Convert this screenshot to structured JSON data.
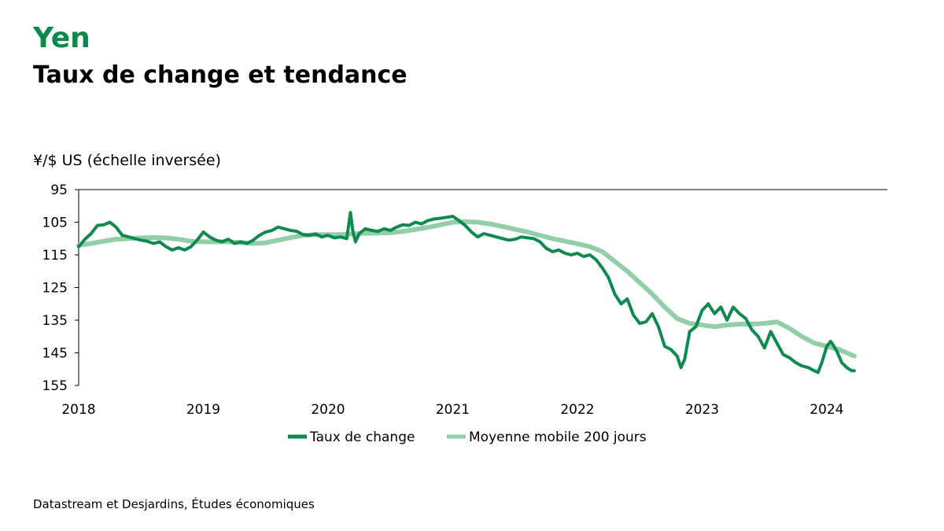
{
  "header": {
    "title": "Yen",
    "subtitle": "Taux de change et tendance"
  },
  "footer": {
    "source": "Datastream et Desjardins, Études économiques"
  },
  "colors": {
    "title": "#0a8a4a",
    "rate": "#0f8a4f",
    "trend": "#92cfa8",
    "axis": "#000000",
    "text": "#000000"
  },
  "chart_data": {
    "type": "line",
    "ylabel": "¥/$ US (échelle inversée)",
    "y_inverted": true,
    "ylim": [
      95,
      155
    ],
    "yticks": [
      "95",
      "105",
      "115",
      "125",
      "135",
      "145",
      "155"
    ],
    "xlim": [
      2018.0,
      2024.5
    ],
    "xticks": [
      "2018",
      "2019",
      "2020",
      "2021",
      "2022",
      "2023",
      "2024"
    ],
    "grid": false,
    "legend_position": "bottom",
    "series": [
      {
        "name": "Taux de change",
        "points": [
          [
            2018.0,
            112.5
          ],
          [
            2018.05,
            110.2
          ],
          [
            2018.1,
            108.5
          ],
          [
            2018.15,
            106.0
          ],
          [
            2018.2,
            105.8
          ],
          [
            2018.25,
            105.0
          ],
          [
            2018.3,
            106.5
          ],
          [
            2018.35,
            109.0
          ],
          [
            2018.4,
            109.5
          ],
          [
            2018.45,
            110.0
          ],
          [
            2018.5,
            110.5
          ],
          [
            2018.55,
            110.8
          ],
          [
            2018.6,
            111.5
          ],
          [
            2018.65,
            111.0
          ],
          [
            2018.7,
            112.5
          ],
          [
            2018.75,
            113.5
          ],
          [
            2018.8,
            112.8
          ],
          [
            2018.85,
            113.5
          ],
          [
            2018.9,
            112.5
          ],
          [
            2018.95,
            110.5
          ],
          [
            2019.0,
            108.0
          ],
          [
            2019.05,
            109.5
          ],
          [
            2019.1,
            110.5
          ],
          [
            2019.15,
            111.0
          ],
          [
            2019.2,
            110.2
          ],
          [
            2019.25,
            111.5
          ],
          [
            2019.3,
            111.0
          ],
          [
            2019.35,
            111.5
          ],
          [
            2019.4,
            110.5
          ],
          [
            2019.45,
            109.0
          ],
          [
            2019.5,
            108.0
          ],
          [
            2019.55,
            107.5
          ],
          [
            2019.6,
            106.5
          ],
          [
            2019.65,
            107.0
          ],
          [
            2019.7,
            107.5
          ],
          [
            2019.75,
            107.8
          ],
          [
            2019.8,
            108.8
          ],
          [
            2019.85,
            109.0
          ],
          [
            2019.9,
            108.6
          ],
          [
            2019.95,
            109.5
          ],
          [
            2020.0,
            109.0
          ],
          [
            2020.05,
            109.8
          ],
          [
            2020.1,
            109.5
          ],
          [
            2020.15,
            110.0
          ],
          [
            2020.18,
            102.0
          ],
          [
            2020.2,
            108.0
          ],
          [
            2020.22,
            111.0
          ],
          [
            2020.25,
            108.5
          ],
          [
            2020.3,
            107.0
          ],
          [
            2020.35,
            107.5
          ],
          [
            2020.4,
            107.8
          ],
          [
            2020.45,
            107.0
          ],
          [
            2020.5,
            107.5
          ],
          [
            2020.55,
            106.5
          ],
          [
            2020.6,
            105.8
          ],
          [
            2020.65,
            106.0
          ],
          [
            2020.7,
            105.0
          ],
          [
            2020.75,
            105.5
          ],
          [
            2020.8,
            104.5
          ],
          [
            2020.85,
            104.0
          ],
          [
            2020.9,
            103.8
          ],
          [
            2020.95,
            103.5
          ],
          [
            2021.0,
            103.2
          ],
          [
            2021.05,
            104.5
          ],
          [
            2021.1,
            106.0
          ],
          [
            2021.15,
            108.0
          ],
          [
            2021.2,
            109.5
          ],
          [
            2021.25,
            108.5
          ],
          [
            2021.3,
            109.0
          ],
          [
            2021.35,
            109.5
          ],
          [
            2021.4,
            110.0
          ],
          [
            2021.45,
            110.5
          ],
          [
            2021.5,
            110.2
          ],
          [
            2021.55,
            109.5
          ],
          [
            2021.6,
            109.8
          ],
          [
            2021.65,
            110.0
          ],
          [
            2021.7,
            111.0
          ],
          [
            2021.75,
            113.0
          ],
          [
            2021.8,
            114.0
          ],
          [
            2021.85,
            113.5
          ],
          [
            2021.9,
            114.5
          ],
          [
            2021.95,
            115.0
          ],
          [
            2022.0,
            114.5
          ],
          [
            2022.05,
            115.5
          ],
          [
            2022.1,
            115.0
          ],
          [
            2022.15,
            116.5
          ],
          [
            2022.2,
            119.0
          ],
          [
            2022.25,
            122.0
          ],
          [
            2022.3,
            127.0
          ],
          [
            2022.35,
            130.0
          ],
          [
            2022.4,
            128.5
          ],
          [
            2022.45,
            133.5
          ],
          [
            2022.5,
            136.0
          ],
          [
            2022.55,
            135.5
          ],
          [
            2022.6,
            133.0
          ],
          [
            2022.65,
            137.0
          ],
          [
            2022.7,
            143.0
          ],
          [
            2022.75,
            144.0
          ],
          [
            2022.8,
            146.0
          ],
          [
            2022.83,
            149.5
          ],
          [
            2022.86,
            147.0
          ],
          [
            2022.9,
            138.5
          ],
          [
            2022.95,
            137.0
          ],
          [
            2023.0,
            132.0
          ],
          [
            2023.05,
            130.0
          ],
          [
            2023.1,
            133.0
          ],
          [
            2023.15,
            131.0
          ],
          [
            2023.2,
            135.0
          ],
          [
            2023.25,
            131.0
          ],
          [
            2023.3,
            133.0
          ],
          [
            2023.35,
            134.5
          ],
          [
            2023.4,
            138.0
          ],
          [
            2023.45,
            140.0
          ],
          [
            2023.5,
            143.5
          ],
          [
            2023.55,
            138.5
          ],
          [
            2023.6,
            142.0
          ],
          [
            2023.65,
            145.5
          ],
          [
            2023.7,
            146.5
          ],
          [
            2023.75,
            148.0
          ],
          [
            2023.8,
            149.0
          ],
          [
            2023.85,
            149.5
          ],
          [
            2023.9,
            150.5
          ],
          [
            2023.93,
            151.0
          ],
          [
            2023.96,
            148.0
          ],
          [
            2024.0,
            143.0
          ],
          [
            2024.03,
            141.5
          ],
          [
            2024.05,
            142.5
          ],
          [
            2024.08,
            144.5
          ],
          [
            2024.12,
            148.0
          ],
          [
            2024.16,
            149.5
          ],
          [
            2024.2,
            150.5
          ],
          [
            2024.22,
            150.5
          ]
        ]
      },
      {
        "name": "Moyenne mobile 200 jours",
        "points": [
          [
            2018.0,
            112.0
          ],
          [
            2018.1,
            111.5
          ],
          [
            2018.2,
            110.8
          ],
          [
            2018.3,
            110.2
          ],
          [
            2018.4,
            110.0
          ],
          [
            2018.5,
            109.8
          ],
          [
            2018.6,
            109.7
          ],
          [
            2018.7,
            109.8
          ],
          [
            2018.8,
            110.2
          ],
          [
            2018.9,
            110.8
          ],
          [
            2019.0,
            111.0
          ],
          [
            2019.1,
            111.0
          ],
          [
            2019.2,
            111.0
          ],
          [
            2019.3,
            111.2
          ],
          [
            2019.4,
            111.5
          ],
          [
            2019.5,
            111.3
          ],
          [
            2019.6,
            110.5
          ],
          [
            2019.7,
            109.7
          ],
          [
            2019.8,
            109.0
          ],
          [
            2019.9,
            108.8
          ],
          [
            2020.0,
            108.8
          ],
          [
            2020.1,
            108.8
          ],
          [
            2020.2,
            108.6
          ],
          [
            2020.3,
            108.4
          ],
          [
            2020.4,
            108.3
          ],
          [
            2020.5,
            108.2
          ],
          [
            2020.6,
            107.8
          ],
          [
            2020.7,
            107.2
          ],
          [
            2020.8,
            106.6
          ],
          [
            2020.9,
            105.8
          ],
          [
            2021.0,
            105.0
          ],
          [
            2021.1,
            104.8
          ],
          [
            2021.2,
            105.0
          ],
          [
            2021.3,
            105.5
          ],
          [
            2021.4,
            106.3
          ],
          [
            2021.5,
            107.2
          ],
          [
            2021.6,
            108.0
          ],
          [
            2021.7,
            109.0
          ],
          [
            2021.8,
            110.0
          ],
          [
            2021.9,
            110.8
          ],
          [
            2022.0,
            111.6
          ],
          [
            2022.1,
            112.5
          ],
          [
            2022.2,
            114.0
          ],
          [
            2022.3,
            117.0
          ],
          [
            2022.4,
            120.0
          ],
          [
            2022.5,
            123.5
          ],
          [
            2022.6,
            127.0
          ],
          [
            2022.7,
            131.0
          ],
          [
            2022.8,
            134.5
          ],
          [
            2022.9,
            136.0
          ],
          [
            2023.0,
            136.5
          ],
          [
            2023.1,
            137.0
          ],
          [
            2023.2,
            136.5
          ],
          [
            2023.3,
            136.2
          ],
          [
            2023.4,
            136.2
          ],
          [
            2023.5,
            136.0
          ],
          [
            2023.6,
            135.5
          ],
          [
            2023.7,
            137.5
          ],
          [
            2023.8,
            140.0
          ],
          [
            2023.9,
            142.0
          ],
          [
            2024.0,
            143.0
          ],
          [
            2024.1,
            144.0
          ],
          [
            2024.22,
            146.0
          ]
        ]
      }
    ]
  }
}
